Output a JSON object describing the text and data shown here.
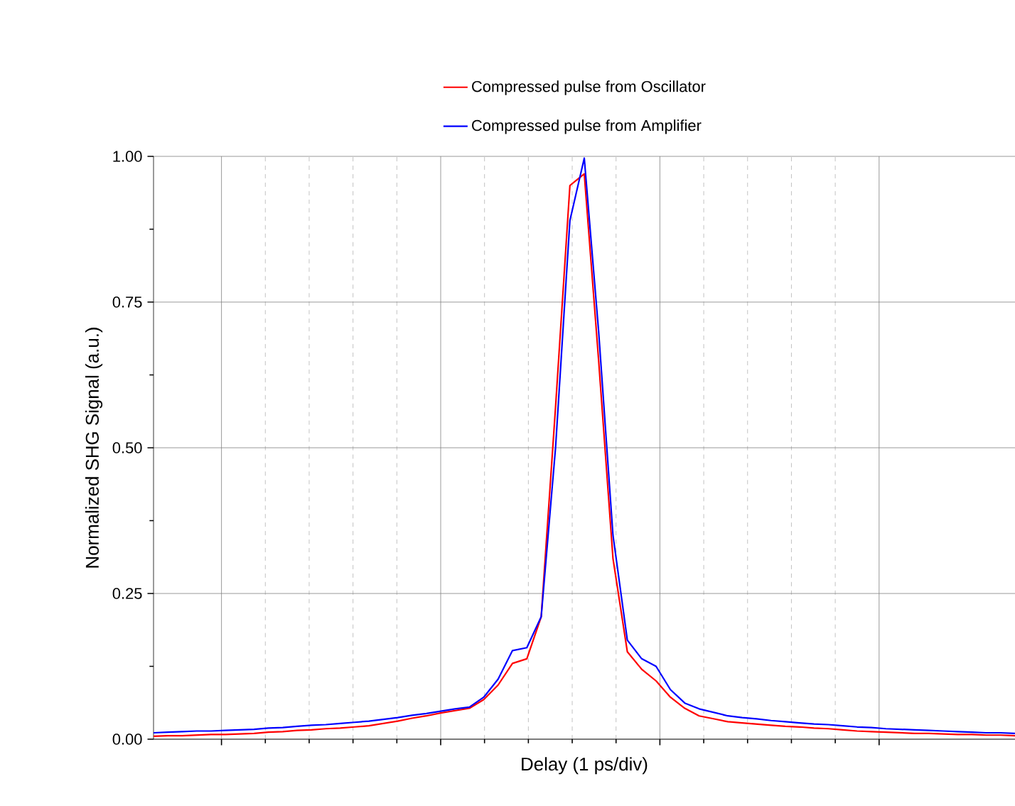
{
  "chart_data": {
    "type": "line",
    "xlabel": "Delay (1 ps/div)",
    "ylabel": "Normalized SHG Signal (a.u.)",
    "categories": [
      null,
      null,
      null,
      null,
      null,
      null,
      null,
      null,
      null,
      null,
      null,
      null,
      null,
      null,
      null,
      null,
      null,
      null,
      null,
      null,
      null,
      null,
      null,
      null,
      null,
      null,
      null,
      null,
      null,
      null,
      null,
      null,
      null,
      null,
      null,
      null,
      null,
      null,
      null,
      null,
      null,
      null,
      null,
      null,
      null,
      null,
      null,
      null,
      null,
      null,
      null,
      null,
      null,
      null,
      null,
      null,
      null,
      null,
      null,
      null,
      null
    ],
    "ylim": [
      0,
      1
    ],
    "yticks": [
      {
        "value": 0,
        "label": "0.00"
      },
      {
        "value": 0.25,
        "label": "0.25"
      },
      {
        "value": 0.5,
        "label": "0.50"
      },
      {
        "value": 0.75,
        "label": "0.75"
      },
      {
        "value": 1,
        "label": "1.00"
      }
    ],
    "grid": true,
    "legend": "top",
    "line_style": "solid",
    "marker": "none",
    "series": [
      {
        "name": "Compressed pulse from Oscillator",
        "color": "#ff0000",
        "values": [
          0.005,
          0.006,
          0.006,
          0.007,
          0.008,
          0.008,
          0.009,
          0.01,
          0.012,
          0.013,
          0.015,
          0.016,
          0.018,
          0.019,
          0.021,
          0.023,
          0.027,
          0.031,
          0.036,
          0.04,
          0.045,
          0.049,
          0.053,
          0.068,
          0.093,
          0.13,
          0.138,
          0.21,
          0.57,
          0.95,
          0.97,
          0.65,
          0.31,
          0.15,
          0.12,
          0.1,
          0.072,
          0.053,
          0.04,
          0.035,
          0.03,
          0.028,
          0.026,
          0.024,
          0.022,
          0.021,
          0.019,
          0.018,
          0.016,
          0.014,
          0.013,
          0.012,
          0.011,
          0.01,
          0.01,
          0.009,
          0.008,
          0.008,
          0.007,
          0.007,
          0.006
        ]
      },
      {
        "name": "Compressed pulse from Amplifier",
        "color": "#0000ff",
        "values": [
          0.011,
          0.012,
          0.013,
          0.014,
          0.014,
          0.015,
          0.016,
          0.017,
          0.019,
          0.02,
          0.022,
          0.024,
          0.025,
          0.027,
          0.029,
          0.031,
          0.034,
          0.037,
          0.041,
          0.044,
          0.048,
          0.052,
          0.055,
          0.072,
          0.103,
          0.152,
          0.157,
          0.21,
          0.5,
          0.89,
          0.997,
          0.7,
          0.35,
          0.17,
          0.138,
          0.125,
          0.085,
          0.062,
          0.052,
          0.046,
          0.04,
          0.037,
          0.035,
          0.032,
          0.03,
          0.028,
          0.026,
          0.025,
          0.023,
          0.021,
          0.02,
          0.018,
          0.017,
          0.016,
          0.015,
          0.014,
          0.013,
          0.012,
          0.011,
          0.011,
          0.01
        ]
      }
    ]
  }
}
